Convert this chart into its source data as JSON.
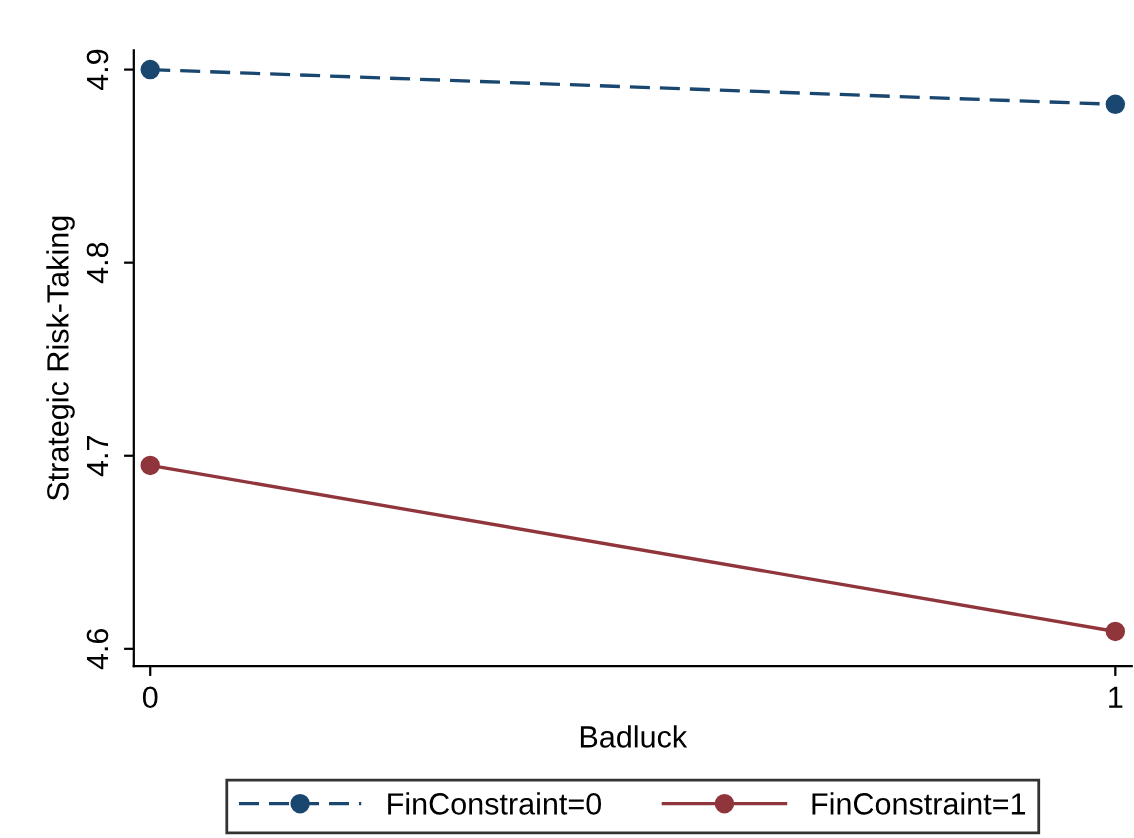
{
  "chart_data": {
    "type": "line",
    "xlabel": "Badluck",
    "ylabel": "Strategic Risk-Taking",
    "x": [
      0,
      1
    ],
    "xlim": [
      -0.017,
      1.017
    ],
    "xticks": [
      0,
      1
    ],
    "ylim": [
      4.591,
      4.91
    ],
    "yticks": [
      4.6,
      4.7,
      4.8,
      4.9
    ],
    "series": [
      {
        "name": "FinConstraint=0",
        "color": "#1a476f",
        "values": [
          4.9,
          4.882
        ],
        "line_style": "dashed"
      },
      {
        "name": "FinConstraint=1",
        "color": "#90353b",
        "values": [
          4.695,
          4.609
        ],
        "line_style": "solid"
      }
    ],
    "marker": "circle",
    "grid": false,
    "legend": "bottom"
  }
}
